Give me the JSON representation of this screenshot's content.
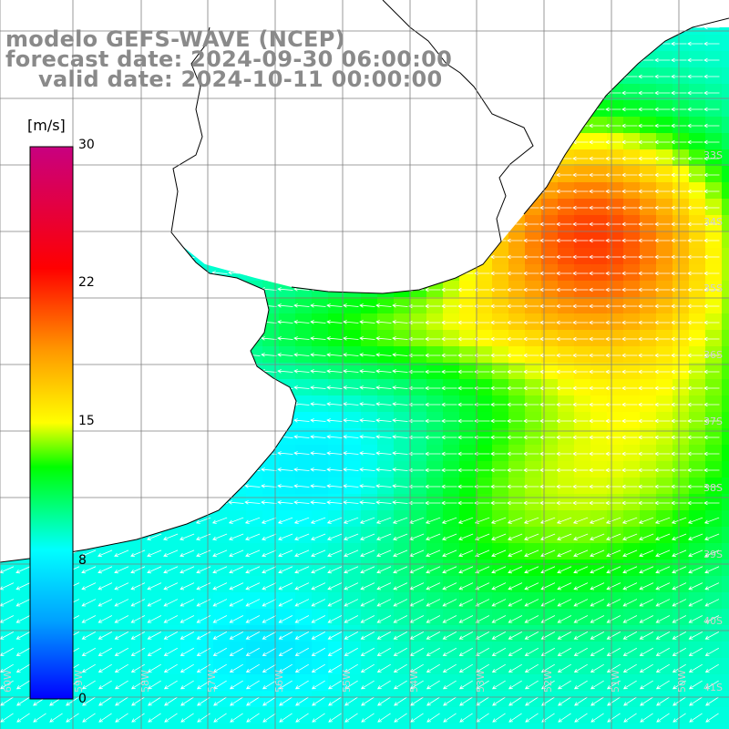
{
  "titles": {
    "model": "modelo GEFS-WAVE (NCEP)",
    "forecast": "forecast date: 2024-09-30 06:00:00",
    "valid": "valid date: 2024-10-11 00:00:00"
  },
  "colorbar": {
    "unit": "[m/s]",
    "ticks": [
      "30",
      "22",
      "15",
      "8",
      "0"
    ],
    "tick_values": [
      30,
      22,
      15,
      8,
      0
    ],
    "range": [
      0,
      30
    ]
  },
  "lat_labels": [
    "33S",
    "34S",
    "35S",
    "36S",
    "37S",
    "38S",
    "39S",
    "40S",
    "41S"
  ],
  "lon_labels": [
    "60W",
    "59W",
    "58W",
    "57W",
    "56W",
    "55W",
    "54W",
    "53W",
    "52W",
    "51W",
    "50W"
  ],
  "colors": {
    "wind_speed_scale": [
      "#0000ff",
      "#00a0ff",
      "#00ffff",
      "#00ff00",
      "#ffff00",
      "#ff9900",
      "#ff0000",
      "#c80080"
    ],
    "land": "#ffffff",
    "coastline": "#000000",
    "grid": "#808080",
    "arrows": "#ffffff"
  },
  "wind_field": {
    "variable": "wind speed",
    "arrows_direction": "mostly westward, turning southwest in the south"
  }
}
